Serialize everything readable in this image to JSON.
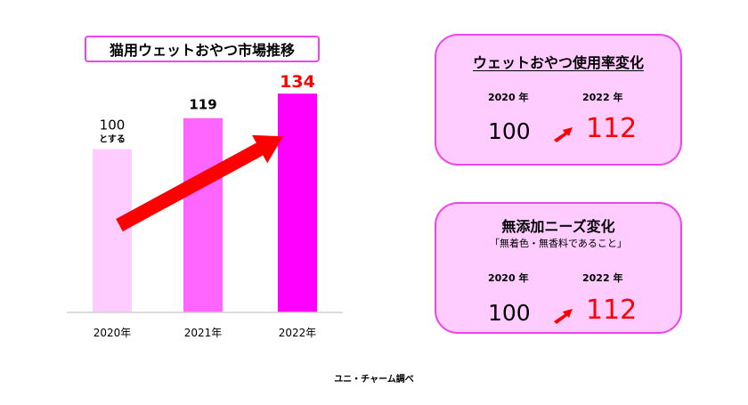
{
  "chart_data": {
    "type": "bar",
    "title": "猫用ウェットおやつ市場推移",
    "categories": [
      "2020年",
      "2021年",
      "2022年"
    ],
    "values": [
      100,
      119,
      134
    ],
    "value_labels": [
      "100",
      "119",
      "134"
    ],
    "first_bar_note": "とする",
    "bar_colors": [
      "#ffccff",
      "#ff66ff",
      "#ff00ff"
    ],
    "label_colors": [
      "#000000",
      "#000000",
      "#ff0000"
    ],
    "arrow_color": "#ff0000",
    "ylim": [
      0,
      145
    ],
    "legend": "none",
    "grid": false
  },
  "cards": [
    {
      "title": "ウェットおやつ使用率変化",
      "subtitle": "",
      "year_from": "2020 年",
      "year_to": "2022 年",
      "value_from": "100",
      "value_to": "112"
    },
    {
      "title": "無添加ニーズ変化",
      "subtitle": "「無着色・無香料であること」",
      "year_from": "2020 年",
      "year_to": "2022 年",
      "value_from": "100",
      "value_to": "112"
    }
  ],
  "source": "ユニ・チャーム調べ",
  "colors": {
    "card_bg": "#ffccff",
    "card_border": "#ee44ee",
    "accent_red": "#ff0000"
  }
}
